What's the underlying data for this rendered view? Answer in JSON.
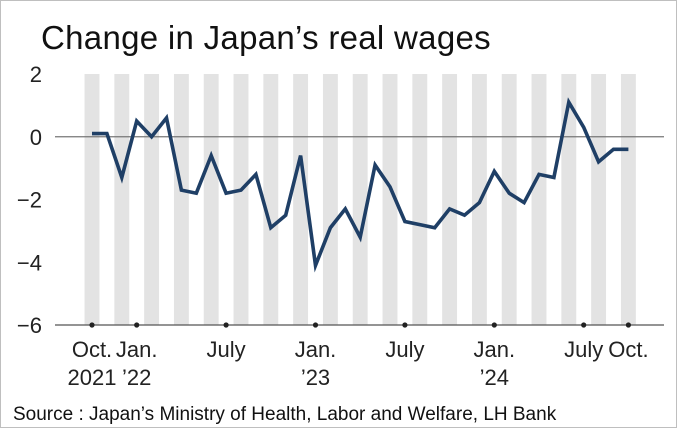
{
  "chart_data": {
    "type": "line",
    "title": "Change in Japan’s real wages",
    "source": "Source : Japan’s Ministry of Health, Labor and Welfare, LH Bank",
    "ylim": [
      -6,
      2
    ],
    "yticks": [
      "2",
      "0",
      "−2",
      "−4",
      "−6"
    ],
    "ytick_values": [
      2,
      0,
      -2,
      -4,
      -6
    ],
    "xtick_labels": [
      {
        "month_index": 0,
        "line1": "Oct.",
        "line2": "2021"
      },
      {
        "month_index": 3,
        "line1": "Jan.",
        "line2": "’22"
      },
      {
        "month_index": 9,
        "line1": "July",
        "line2": ""
      },
      {
        "month_index": 15,
        "line1": "Jan.",
        "line2": "’23"
      },
      {
        "month_index": 21,
        "line1": "July",
        "line2": ""
      },
      {
        "month_index": 27,
        "line1": "Jan.",
        "line2": "’24"
      },
      {
        "month_index": 33,
        "line1": "July",
        "line2": ""
      },
      {
        "month_index": 36,
        "line1": "Oct.",
        "line2": ""
      }
    ],
    "x_start": "2021-10",
    "x_end": "2024-10",
    "series": [
      {
        "values": [
          0.1,
          0.1,
          -1.3,
          0.5,
          0.0,
          0.6,
          -1.7,
          -1.8,
          -0.6,
          -1.8,
          -1.7,
          -1.2,
          -2.9,
          -2.5,
          -0.6,
          -4.1,
          -2.9,
          -2.3,
          -3.2,
          -0.9,
          -1.6,
          -2.7,
          -2.8,
          -2.9,
          -2.3,
          -2.5,
          -2.1,
          -1.1,
          -1.8,
          -2.1,
          -1.2,
          -1.3,
          1.1,
          0.3,
          -0.8,
          -0.4,
          -0.4
        ],
        "color": "#1f3f66"
      }
    ],
    "x_months": [
      "2021-10",
      "2021-11",
      "2021-12",
      "2022-01",
      "2022-02",
      "2022-03",
      "2022-04",
      "2022-05",
      "2022-06",
      "2022-07",
      "2022-08",
      "2022-09",
      "2022-10",
      "2022-11",
      "2022-12",
      "2023-01",
      "2023-02",
      "2023-03",
      "2023-04",
      "2023-05",
      "2023-06",
      "2023-07",
      "2023-08",
      "2023-09",
      "2023-10",
      "2023-11",
      "2023-12",
      "2024-01",
      "2024-02",
      "2024-03",
      "2024-04",
      "2024-05",
      "2024-06",
      "2024-07",
      "2024-08",
      "2024-09",
      "2024-10"
    ],
    "grid": false,
    "shaded_columns": "alternating months",
    "colors": {
      "line": "#1f3f66",
      "shade": "#e3e3e3",
      "axis": "#555555"
    }
  }
}
